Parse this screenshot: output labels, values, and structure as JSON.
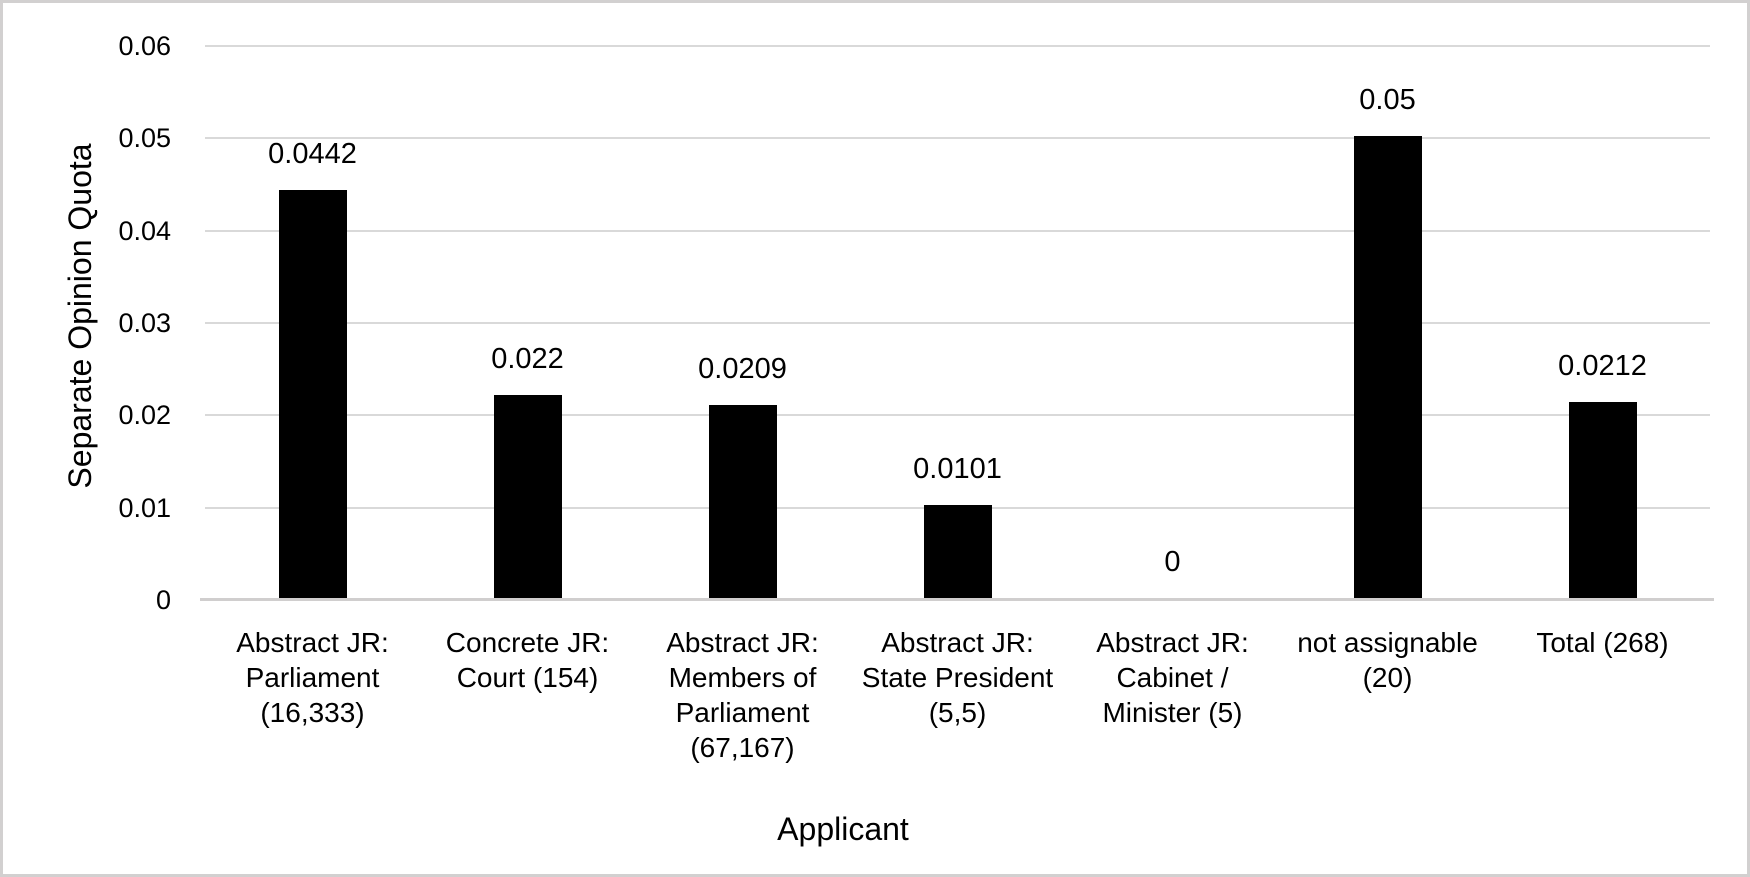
{
  "chart_data": {
    "type": "bar",
    "title": "",
    "xlabel": "Applicant",
    "ylabel": "Separate Opinion Quota",
    "categories": [
      "Abstract JR: Parliament (16,333)",
      "Concrete JR: Court (154)",
      "Abstract JR: Members of Parliament (67,167)",
      "Abstract JR: State President (5,5)",
      "Abstract JR: Cabinet / Minister (5)",
      "not assignable (20)",
      "Total (268)"
    ],
    "values": [
      0.0442,
      0.022,
      0.0209,
      0.0101,
      0,
      0.05,
      0.0212
    ],
    "data_labels": [
      "0.0442",
      "0.022",
      "0.0209",
      "0.0101",
      "0",
      "0.05",
      "0.0212"
    ],
    "y_ticks": [
      "0",
      "0.01",
      "0.02",
      "0.03",
      "0.04",
      "0.05",
      "0.06"
    ],
    "ylim": [
      0,
      0.06
    ],
    "grid": "horizontal",
    "legend_position": "none",
    "colors": {
      "bar": "#000000",
      "gridline": "#d9d9d9",
      "axis_line": "#d0cece",
      "text": "#000000",
      "background": "#ffffff",
      "frame_border": "#d2d0d0"
    }
  }
}
